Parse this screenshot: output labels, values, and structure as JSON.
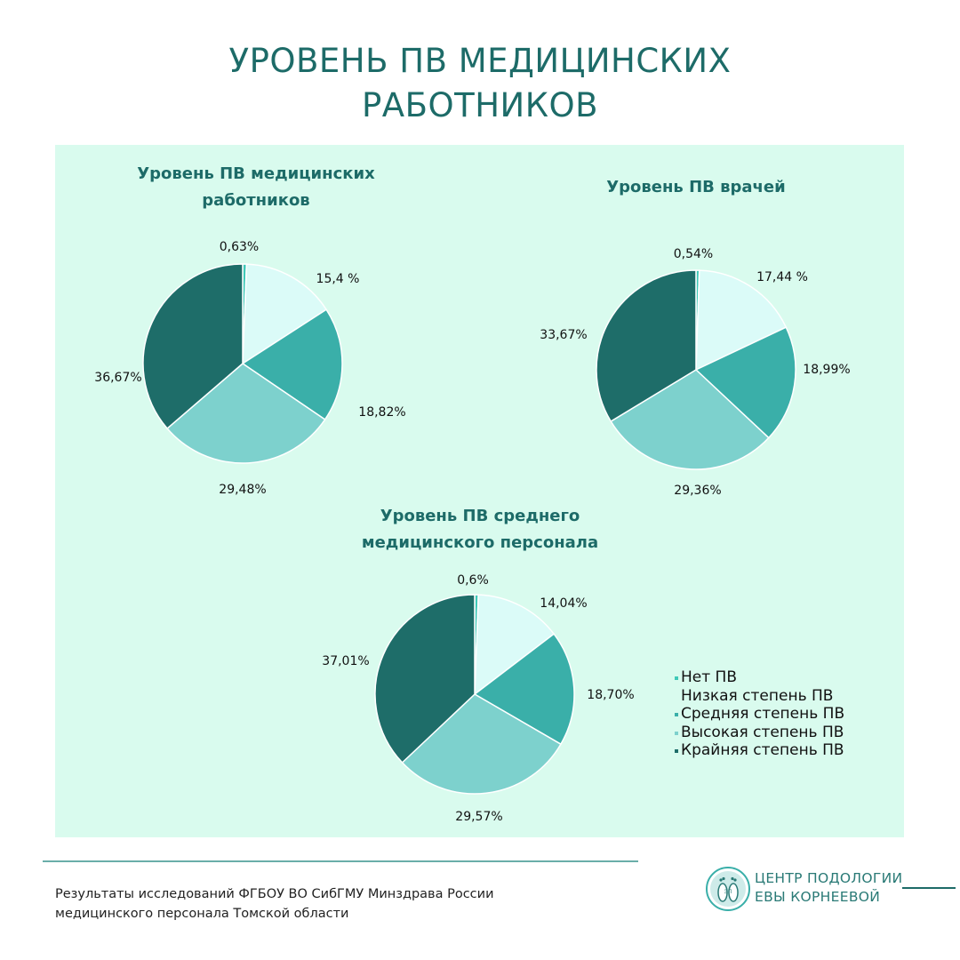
{
  "title_lines": [
    "УРОВЕНЬ ПВ МЕДИЦИНСКИХ",
    "РАБОТНИКОВ"
  ],
  "colors": {
    "title": "#1d6b68",
    "panel_bg": "#d9fbee",
    "net_pv": "#3fc9b8",
    "nizkaya": "#dbfbf8",
    "srednyaya": "#3aafa9",
    "vysokaya": "#7dd1cd",
    "krainyaya": "#1e6d69"
  },
  "legend": [
    {
      "label": "Нет ПВ",
      "color": "#3fc9b8"
    },
    {
      "label": "Низкая степень ПВ",
      "color": ""
    },
    {
      "label": "Средняя степень ПВ",
      "color": "#3aafa9"
    },
    {
      "label": "Высокая степень ПВ",
      "color": "#7dd1cd"
    },
    {
      "label": "Крайняя степень ПВ",
      "color": "#1e6d69"
    }
  ],
  "chart_data": [
    {
      "type": "pie",
      "title_lines": [
        "Уровень ПВ медицинских",
        "работников"
      ],
      "categories": [
        "Нет ПВ",
        "Низкая степень ПВ",
        "Средняя степень ПВ",
        "Высокая степень ПВ",
        "Крайняя степень ПВ"
      ],
      "values": [
        0.63,
        15.4,
        18.82,
        29.48,
        36.67
      ],
      "labels": [
        "0,63%",
        "15,4 %",
        "18,82%",
        "29,48%",
        "36,67%"
      ]
    },
    {
      "type": "pie",
      "title_lines": [
        "Уровень ПВ врачей"
      ],
      "categories": [
        "Нет ПВ",
        "Низкая степень ПВ",
        "Средняя степень ПВ",
        "Высокая степень ПВ",
        "Крайняя степень ПВ"
      ],
      "values": [
        0.54,
        17.44,
        18.99,
        29.36,
        33.67
      ],
      "labels": [
        "0,54%",
        "17,44 %",
        "18,99%",
        "29,36%",
        "33,67%"
      ]
    },
    {
      "type": "pie",
      "title_lines": [
        "Уровень ПВ среднего",
        "медицинского персонала"
      ],
      "categories": [
        "Нет ПВ",
        "Низкая степень ПВ",
        "Средняя степень ПВ",
        "Высокая степень ПВ",
        "Крайняя степень ПВ"
      ],
      "values": [
        0.6,
        14.04,
        18.7,
        29.57,
        37.01
      ],
      "labels": [
        "0,6%",
        "14,04%",
        "18,70%",
        "29,57%",
        "37,01%"
      ]
    }
  ],
  "footer_lines": [
    "Результаты исследований ФГБОУ ВО СибГМУ Минздрава России",
    "медицинского персонала Томской области"
  ],
  "logo": {
    "lines": [
      "ЦЕНТР ПОДОЛОГИИ",
      "ЕВЫ КОРНЕЕВОЙ"
    ],
    "mark_text": "ЭП",
    "icon": "feet-logo-icon"
  }
}
